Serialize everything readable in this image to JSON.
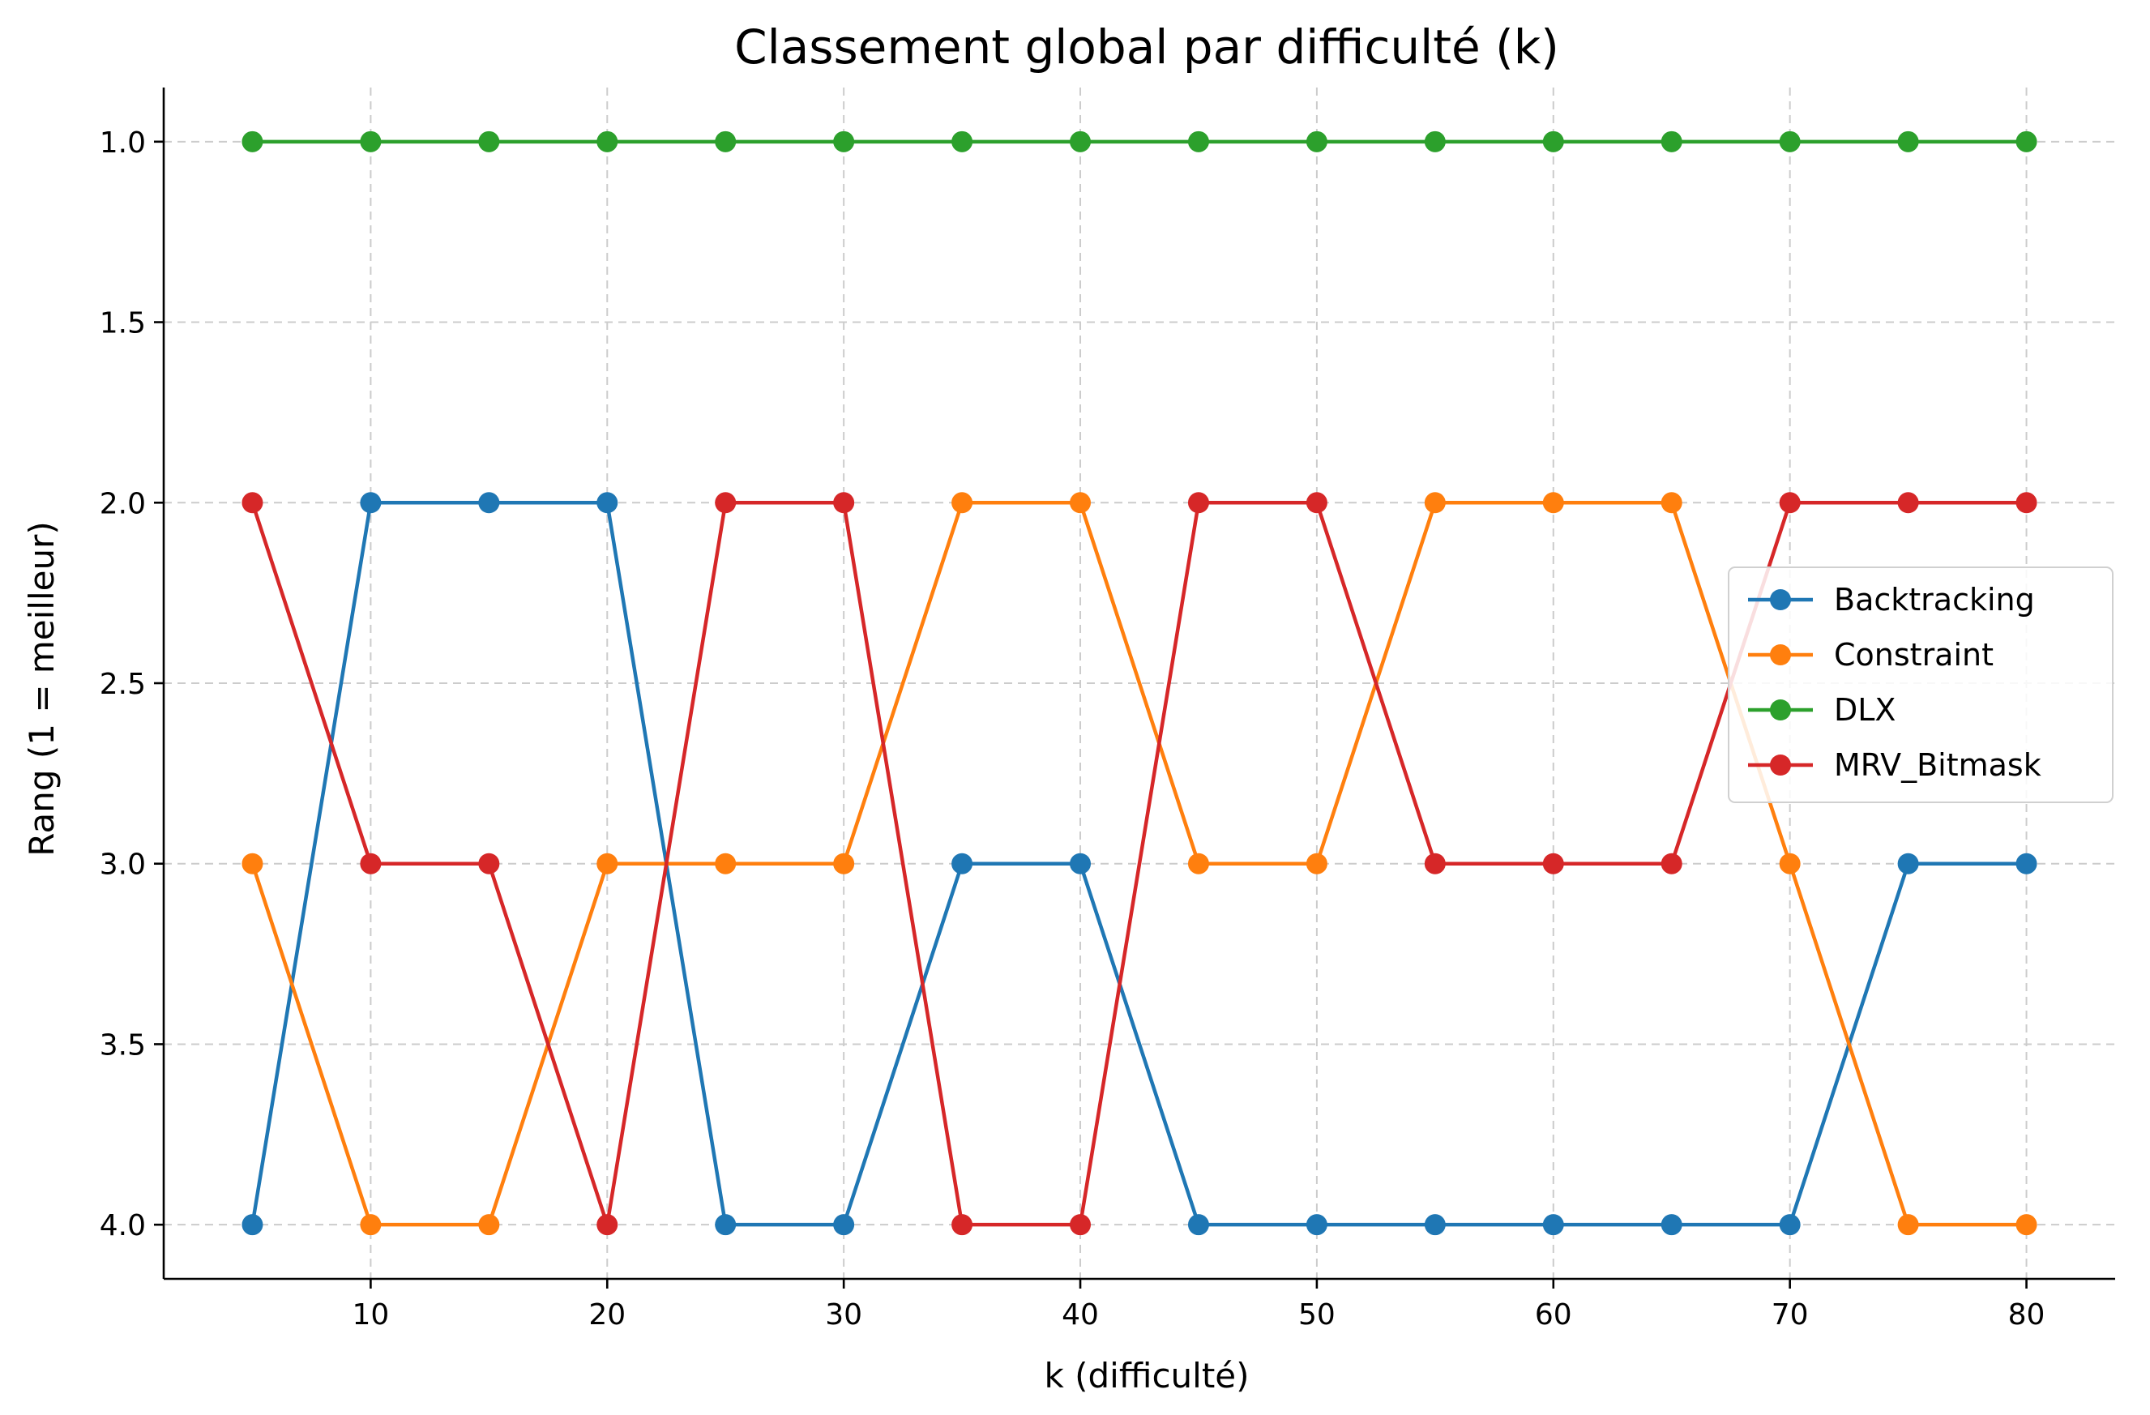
{
  "chart_data": {
    "type": "line",
    "title": "Classement global par difficulté (k)",
    "xlabel": "k (difficulté)",
    "ylabel": "Rang (1 = meilleur)",
    "x": [
      5,
      10,
      15,
      20,
      25,
      30,
      35,
      40,
      45,
      50,
      55,
      60,
      65,
      70,
      75,
      80
    ],
    "xticks": [
      10,
      20,
      30,
      40,
      50,
      60,
      70,
      80
    ],
    "xtick_labels": [
      "10",
      "20",
      "30",
      "40",
      "50",
      "60",
      "70",
      "80"
    ],
    "yticks": [
      1.0,
      1.5,
      2.0,
      2.5,
      3.0,
      3.5,
      4.0
    ],
    "ytick_labels": [
      "1.0",
      "1.5",
      "2.0",
      "2.5",
      "3.0",
      "3.5",
      "4.0"
    ],
    "xlim": [
      1.25,
      83.75
    ],
    "ylim": [
      4.15,
      0.85
    ],
    "y_inverted": true,
    "grid": true,
    "legend_position": "center-right",
    "series": [
      {
        "name": "Backtracking",
        "color": "#1f77b4",
        "marker": "circle",
        "values": [
          4,
          2,
          2,
          2,
          4,
          4,
          3,
          3,
          4,
          4,
          4,
          4,
          4,
          4,
          3,
          3
        ]
      },
      {
        "name": "Constraint",
        "color": "#ff7f0e",
        "marker": "circle",
        "values": [
          3,
          4,
          4,
          3,
          3,
          3,
          2,
          2,
          3,
          3,
          2,
          2,
          2,
          3,
          4,
          4
        ]
      },
      {
        "name": "DLX",
        "color": "#2ca02c",
        "marker": "circle",
        "values": [
          1,
          1,
          1,
          1,
          1,
          1,
          1,
          1,
          1,
          1,
          1,
          1,
          1,
          1,
          1,
          1
        ]
      },
      {
        "name": "MRV_Bitmask",
        "color": "#d62728",
        "marker": "circle",
        "values": [
          2,
          3,
          3,
          4,
          2,
          2,
          4,
          4,
          2,
          2,
          3,
          3,
          3,
          2,
          2,
          2
        ]
      }
    ]
  }
}
